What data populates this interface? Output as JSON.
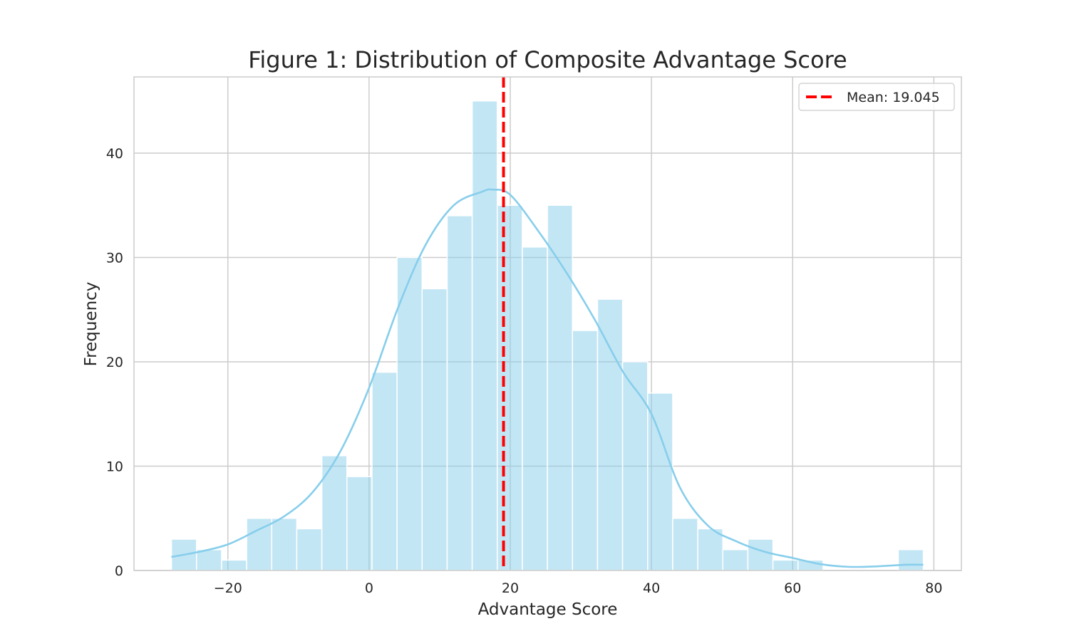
{
  "chart_data": {
    "type": "bar",
    "subtype": "histogram-with-kde",
    "title": "Figure 1: Distribution of Composite Advantage Score",
    "xlabel": "Advantage Score",
    "ylabel": "Frequency",
    "xlim": [
      -33.3,
      83.9
    ],
    "ylim": [
      0,
      47.3
    ],
    "xticks": [
      -20,
      0,
      20,
      40,
      60,
      80
    ],
    "xtick_labels": [
      "−20",
      "0",
      "20",
      "40",
      "60",
      "80"
    ],
    "yticks": [
      0,
      10,
      20,
      30,
      40
    ],
    "ytick_labels": [
      "0",
      "10",
      "20",
      "30",
      "40"
    ],
    "grid": true,
    "bin_edges": [
      -27.99,
      -24.44,
      -20.89,
      -17.34,
      -13.79,
      -10.24,
      -6.69,
      -3.14,
      0.41,
      3.96,
      7.51,
      11.06,
      14.61,
      18.16,
      21.71,
      25.26,
      28.81,
      32.36,
      35.91,
      39.46,
      43.01,
      46.56,
      50.11,
      53.66,
      57.21,
      60.76,
      64.31,
      67.86,
      71.41,
      74.96,
      78.51
    ],
    "counts": [
      3,
      2,
      1,
      5,
      5,
      4,
      11,
      9,
      19,
      30,
      27,
      34,
      45,
      35,
      31,
      35,
      23,
      26,
      20,
      17,
      5,
      4,
      2,
      3,
      1,
      1,
      0,
      0,
      0,
      2
    ],
    "bar_color": "#87ceeb",
    "kde": {
      "name": "KDE",
      "color": "#87ceeb",
      "x": [
        -28,
        -24,
        -20,
        -16,
        -12,
        -8,
        -4,
        0,
        4,
        8,
        12,
        16,
        17.5,
        20,
        24,
        28,
        32,
        36,
        40,
        44,
        48,
        52,
        56,
        60,
        64,
        68,
        72,
        76,
        78.5
      ],
      "y": [
        1.3,
        1.8,
        2.5,
        3.8,
        5.2,
        7.5,
        11.5,
        17.5,
        25.0,
        31.2,
        35.0,
        36.3,
        36.5,
        36.0,
        32.5,
        28.5,
        24.0,
        19.0,
        15.0,
        8.0,
        4.3,
        2.8,
        1.8,
        1.2,
        0.6,
        0.35,
        0.4,
        0.55,
        0.55
      ]
    },
    "mean_line": {
      "value": 19.045,
      "color": "#ff0000",
      "style": "dashed",
      "legend_label": "Mean: 19.045"
    },
    "legend": {
      "position": "top-right",
      "entries": [
        "Mean: 19.045"
      ]
    }
  }
}
